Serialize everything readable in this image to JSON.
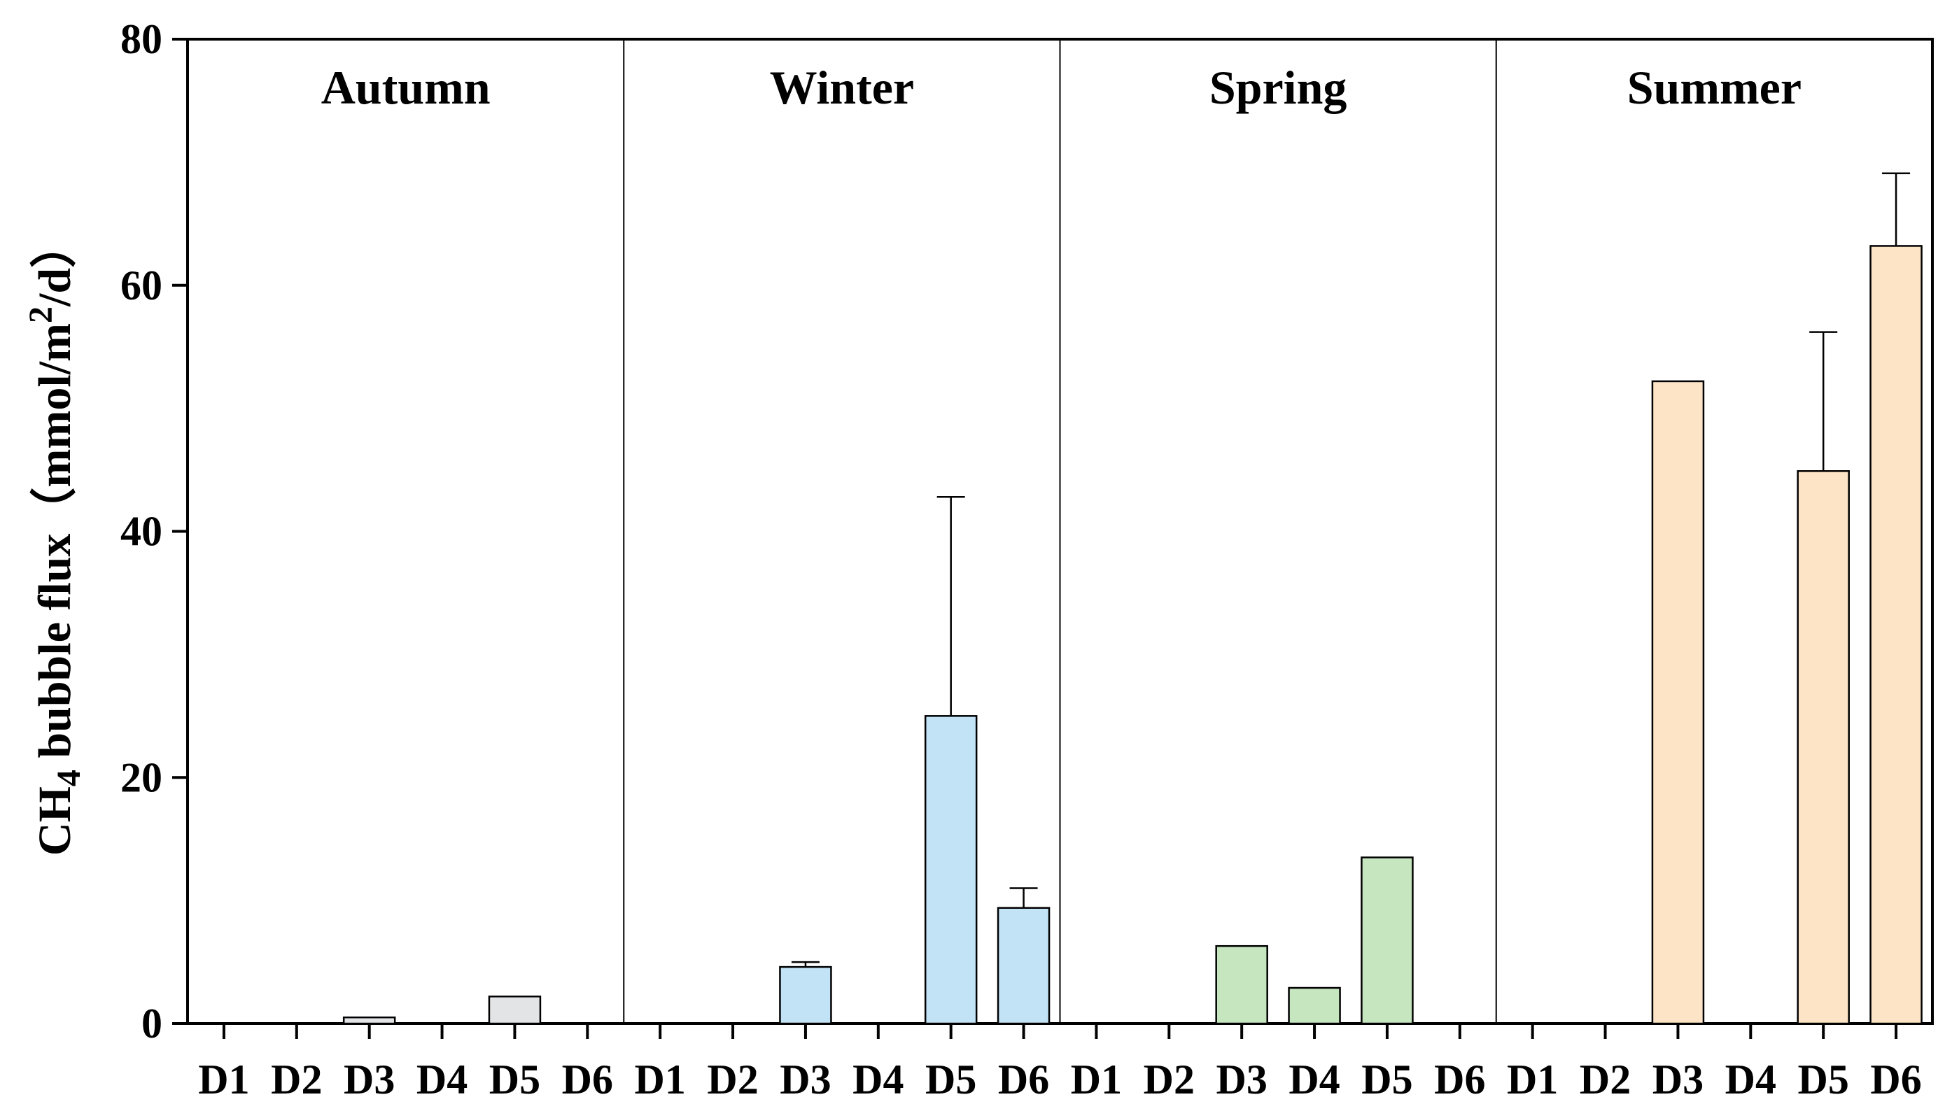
{
  "chart_data": {
    "type": "bar",
    "title": "",
    "ylabel": {
      "prefix": "CH",
      "subscript": "4",
      "middle": " bubble flux（mmol/m",
      "superscript": "2",
      "suffix": "/d）"
    },
    "ylim": [
      0,
      80
    ],
    "yticks": [
      "0",
      "20",
      "40",
      "60",
      "80"
    ],
    "grid": false,
    "groups": [
      {
        "name": "Autumn",
        "color": "#E2E4E5",
        "categories": [
          "D1",
          "D2",
          "D3",
          "D4",
          "D5",
          "D6"
        ],
        "values": [
          0,
          0,
          0.5,
          0,
          2.2,
          0
        ],
        "errors": [
          0,
          0,
          0,
          0,
          0,
          0
        ]
      },
      {
        "name": "Winter",
        "color": "#C2E2F6",
        "categories": [
          "D1",
          "D2",
          "D3",
          "D4",
          "D5",
          "D6"
        ],
        "values": [
          0,
          0,
          4.6,
          0,
          25.0,
          9.4
        ],
        "errors": [
          0,
          0,
          0.4,
          0,
          17.8,
          1.6
        ]
      },
      {
        "name": "Spring",
        "color": "#C6E6C0",
        "categories": [
          "D1",
          "D2",
          "D3",
          "D4",
          "D5",
          "D6"
        ],
        "values": [
          0,
          0,
          6.3,
          2.9,
          13.5,
          0
        ],
        "errors": [
          0,
          0,
          0,
          0,
          0,
          0
        ]
      },
      {
        "name": "Summer",
        "color": "#FDE4C6",
        "categories": [
          "D1",
          "D2",
          "D3",
          "D4",
          "D5",
          "D6"
        ],
        "values": [
          0,
          0,
          52.2,
          0,
          44.9,
          63.2
        ],
        "errors": [
          0,
          0,
          0,
          0,
          11.3,
          5.9
        ]
      }
    ]
  }
}
